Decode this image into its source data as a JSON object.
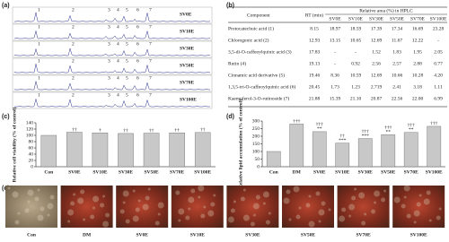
{
  "panels": [
    "(a)",
    "(b)",
    "(c)",
    "(d)",
    "(e)"
  ],
  "chromatograms": {
    "labels": [
      "SV0E",
      "SV10E",
      "SV30E",
      "SV50E",
      "SV70E",
      "SV100E"
    ],
    "peaks": [
      "1",
      "2",
      "3",
      "4",
      "5",
      "6",
      "7"
    ]
  },
  "table": {
    "header": [
      "Component",
      "RT (min)",
      "Relative area (%) in HPLC"
    ],
    "subheader": [
      "SV0E",
      "SV10E",
      "SV30E",
      "SV50E",
      "SV70E",
      "SV100E"
    ],
    "rows": [
      [
        "Protocatechuic acid (1)",
        "8.15",
        "18.97",
        "18.59",
        "17.39",
        "17.34",
        "16.69",
        "23.28"
      ],
      [
        "Chlorogenic acid (2)",
        "12.93",
        "13.15",
        "10.65",
        "12.69",
        "11.67",
        "12.22",
        "-"
      ],
      [
        "3,5-di-O-caffeoylquinic acid (3)",
        "17.83",
        "-",
        "-",
        "1.52",
        "1.83",
        "1.95",
        "2.05"
      ],
      [
        "Rutin (4)",
        "19.13",
        "-",
        "0.92",
        "2.56",
        "2.57",
        "2.88",
        "0.77"
      ],
      [
        "Cinnamic acid derivative (5)",
        "19.46",
        "8.36",
        "10.59",
        "12.69",
        "10.66",
        "10.28",
        "4.20"
      ],
      [
        "1,3,5-tri-O-caffeoylquinic acid (6)",
        "20.45",
        "1.73",
        "1.23",
        "2.719",
        "2.41",
        "3.18",
        "1.11"
      ],
      [
        "Kaempferol-3-O-rutinoside (7)",
        "21.88",
        "15.39",
        "21.10",
        "20.87",
        "22.56",
        "22.00",
        "6.99"
      ]
    ]
  },
  "chart_data": [
    {
      "type": "bar",
      "y_label": "Relative cell viability (% of control)",
      "categories": [
        "Con",
        "SV0E",
        "SV10E",
        "SV30E",
        "SV50E",
        "SV70E",
        "SV100E"
      ],
      "values": [
        100,
        110,
        108,
        106,
        107,
        108,
        109
      ],
      "annotations": [
        null,
        [
          "††"
        ],
        [
          "†"
        ],
        [
          "††"
        ],
        [
          "††"
        ],
        [
          "††"
        ],
        [
          "††"
        ]
      ],
      "ylim": [
        0,
        140
      ],
      "yticks": [
        0,
        20,
        40,
        60,
        80,
        100,
        120,
        140
      ],
      "color": "#c8c8c8"
    },
    {
      "type": "bar",
      "y_label": "Relative lipid accumulation (% of control)",
      "categories": [
        "Con",
        "DM",
        "SV0E",
        "SV10E",
        "SV30E",
        "SV50E",
        "SV70E",
        "SV100E"
      ],
      "values": [
        100,
        280,
        230,
        155,
        185,
        210,
        225,
        265
      ],
      "annotations": [
        null,
        [
          "†††"
        ],
        [
          "†††",
          "**"
        ],
        [
          "††",
          "***"
        ],
        [
          "†††",
          "***"
        ],
        [
          "†††",
          "**"
        ],
        [
          "†††",
          "**"
        ],
        [
          "†††"
        ]
      ],
      "ylim": [
        0,
        300
      ],
      "yticks": [
        0,
        50,
        100,
        150,
        200,
        250,
        300
      ],
      "color": "#c8c8c8"
    }
  ],
  "images": {
    "labels": [
      "Con",
      "DM",
      "SV0E",
      "SV10E",
      "SV30E",
      "SV50E",
      "SV70E",
      "SV100E"
    ]
  }
}
